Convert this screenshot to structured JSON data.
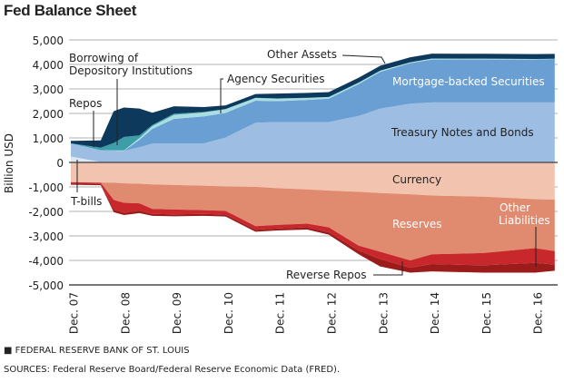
{
  "title": "Fed Balance Sheet",
  "footer": {
    "org": "■ FEDERAL RESERVE BANK OF ST. LOUIS",
    "sources": "SOURCES: Federal Reserve Board/Federal Reserve Economic Data (FRED)."
  },
  "chart_data": {
    "type": "area",
    "stacked": true,
    "ylabel": "Billion USD",
    "ylim": [
      -5000,
      5000
    ],
    "yticks": [
      "5,000",
      "4,000",
      "3,000",
      "2,000",
      "1,000",
      "0",
      "-1,000",
      "-2,000",
      "-3,000",
      "-4,000",
      "-5,000"
    ],
    "ytick_values": [
      5000,
      4000,
      3000,
      2000,
      1000,
      0,
      -1000,
      -2000,
      -3000,
      -4000,
      -5000
    ],
    "xticks": [
      "Dec. 07",
      "Dec. 08",
      "Dec. 09",
      "Dec. 10",
      "Dec. 11",
      "Dec. 12",
      "Dec. 13",
      "Dec. 14",
      "Dec. 15",
      "Dec. 16"
    ],
    "xtick_values": [
      2007.92,
      2008.92,
      2009.92,
      2010.92,
      2011.92,
      2012.92,
      2013.92,
      2014.92,
      2015.92,
      2016.92
    ],
    "grid": true,
    "x": [
      2007.92,
      2008.5,
      2008.75,
      2008.95,
      2009.25,
      2009.5,
      2009.92,
      2010.5,
      2010.92,
      2011.5,
      2011.92,
      2012.5,
      2012.92,
      2013.5,
      2013.92,
      2014.5,
      2014.92,
      2015.92,
      2016.92,
      2017.3
    ],
    "assets": [
      {
        "name": "T-bills",
        "color": "#dde7f3",
        "values": [
          240,
          20,
          20,
          20,
          20,
          20,
          20,
          20,
          20,
          20,
          0,
          0,
          0,
          0,
          0,
          0,
          0,
          0,
          0,
          0
        ]
      },
      {
        "name": "Treasury Notes and Bonds",
        "color": "#9dbde3",
        "values": [
          540,
          480,
          460,
          450,
          600,
          750,
          760,
          760,
          1000,
          1600,
          1650,
          1650,
          1650,
          1900,
          2200,
          2400,
          2450,
          2450,
          2450,
          2450
        ]
      },
      {
        "name": "Mortgage-backed Securities",
        "color": "#6a9fd4",
        "values": [
          0,
          0,
          0,
          0,
          300,
          600,
          1000,
          1100,
          1000,
          900,
          850,
          900,
          950,
          1300,
          1500,
          1650,
          1750,
          1750,
          1750,
          1770
        ]
      },
      {
        "name": "Agency Securities",
        "color": "#a8dde2",
        "values": [
          0,
          0,
          10,
          20,
          80,
          110,
          160,
          160,
          150,
          110,
          100,
          80,
          70,
          60,
          50,
          40,
          40,
          35,
          20,
          10
        ]
      },
      {
        "name": "Repos",
        "color": "#3e9ea8",
        "values": [
          0,
          100,
          300,
          550,
          100,
          50,
          50,
          20,
          10,
          10,
          10,
          10,
          0,
          0,
          0,
          0,
          0,
          0,
          0,
          0
        ]
      },
      {
        "name": "Other Assets",
        "color": "#0d3a5c",
        "values": [
          100,
          300,
          1300,
          1200,
          1100,
          500,
          300,
          200,
          150,
          150,
          200,
          200,
          200,
          200,
          200,
          200,
          200,
          200,
          200,
          200
        ]
      }
    ],
    "liabilities": [
      {
        "name": "Currency",
        "color": "#f2c4b0",
        "values": [
          800,
          820,
          830,
          850,
          870,
          900,
          920,
          950,
          980,
          1000,
          1050,
          1100,
          1150,
          1200,
          1250,
          1300,
          1350,
          1400,
          1500,
          1520
        ]
      },
      {
        "name": "Reserves",
        "color": "#e08a70",
        "values": [
          10,
          10,
          700,
          800,
          800,
          1000,
          1000,
          1000,
          1000,
          1600,
          1500,
          1400,
          1500,
          2200,
          2400,
          2700,
          2400,
          2300,
          2000,
          2100
        ]
      },
      {
        "name": "Other Liabilities",
        "color": "#c8282c",
        "values": [
          50,
          50,
          400,
          400,
          300,
          200,
          200,
          150,
          150,
          150,
          150,
          150,
          200,
          200,
          300,
          300,
          400,
          500,
          600,
          550
        ]
      },
      {
        "name": "Reverse Repos",
        "color": "#9c1c1c",
        "values": [
          50,
          50,
          100,
          100,
          100,
          80,
          80,
          80,
          80,
          80,
          80,
          90,
          100,
          150,
          300,
          200,
          300,
          300,
          400,
          250
        ]
      }
    ],
    "annotations": {
      "other_assets": "Other Assets",
      "borrowing": "Borrowing of",
      "borrowing2": "Depository Institutions",
      "agency": "Agency Securities",
      "repos": "Repos",
      "mbs": "Mortgage-backed Securities",
      "notes": "Treasury Notes and Bonds",
      "currency": "Currency",
      "tbills": "T-bills",
      "reserves": "Reserves",
      "other_liab": "Other",
      "other_liab2": "Liabilities",
      "reverse": "Reverse Repos"
    }
  }
}
